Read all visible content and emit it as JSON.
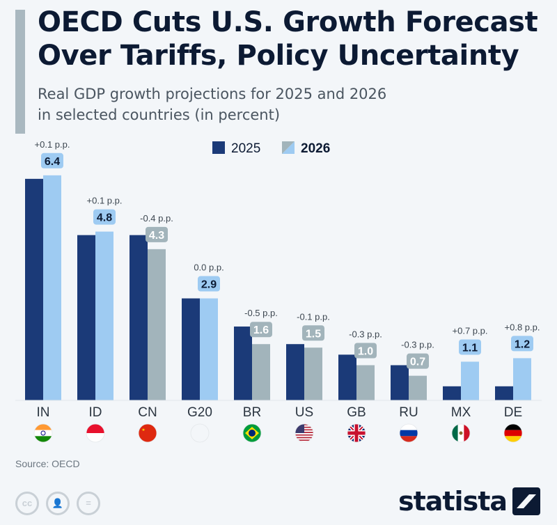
{
  "header": {
    "title_line1": "OECD Cuts U.S. Growth Forecast",
    "title_line2": "Over Tariffs, Policy Uncertainty",
    "subtitle_line1": "Real GDP growth projections for 2025 and 2026",
    "subtitle_line2": "in selected countries (in percent)"
  },
  "legend": {
    "series_2025": "2025",
    "series_2026": "2026"
  },
  "footer": {
    "source": "Source: OECD",
    "brand": "statista"
  },
  "colors": {
    "bar_2025": "#1b3a78",
    "bar_2026_up": "#9ecbf2",
    "bar_2026_down": "#a2b4bb",
    "label_up_bg": "#9ecbf2",
    "label_down_bg": "#a2b4bb",
    "label_up_text": "#0c1a33",
    "label_down_text": "#ffffff"
  },
  "chart_data": {
    "type": "bar",
    "title": "OECD Cuts U.S. Growth Forecast Over Tariffs, Policy Uncertainty",
    "subtitle": "Real GDP growth projections for 2025 and 2026 in selected countries (in percent)",
    "categories": [
      "IN",
      "ID",
      "CN",
      "G20",
      "BR",
      "US",
      "GB",
      "RU",
      "MX",
      "DE"
    ],
    "series": [
      {
        "name": "2025",
        "values": [
          6.3,
          4.7,
          4.7,
          2.9,
          2.1,
          1.6,
          1.3,
          1.0,
          0.4,
          0.4
        ]
      },
      {
        "name": "2026",
        "values": [
          6.4,
          4.8,
          4.3,
          2.9,
          1.6,
          1.5,
          1.0,
          0.7,
          1.1,
          1.2
        ]
      }
    ],
    "value_labels": [
      "6.4",
      "4.8",
      "4.3",
      "2.9",
      "1.6",
      "1.5",
      "1.0",
      "0.7",
      "1.1",
      "1.2"
    ],
    "change_labels": [
      "+0.1 p.p.",
      "+0.1 p.p.",
      "-0.4 p.p.",
      "0.0 p.p.",
      "-0.5 p.p.",
      "-0.1 p.p.",
      "-0.3 p.p.",
      "-0.3 p.p.",
      "+0.7 p.p.",
      "+0.8 p.p."
    ],
    "trend": [
      "up",
      "up",
      "down",
      "up",
      "down",
      "down",
      "down",
      "down",
      "up",
      "up"
    ],
    "flags": [
      "india-flag-icon",
      "indonesia-flag-icon",
      "china-flag-icon",
      "g20-icon",
      "brazil-flag-icon",
      "usa-flag-icon",
      "uk-flag-icon",
      "russia-flag-icon",
      "mexico-flag-icon",
      "germany-flag-icon"
    ],
    "ylim": [
      0,
      7
    ],
    "grid": false,
    "legend_position": "top-center"
  }
}
